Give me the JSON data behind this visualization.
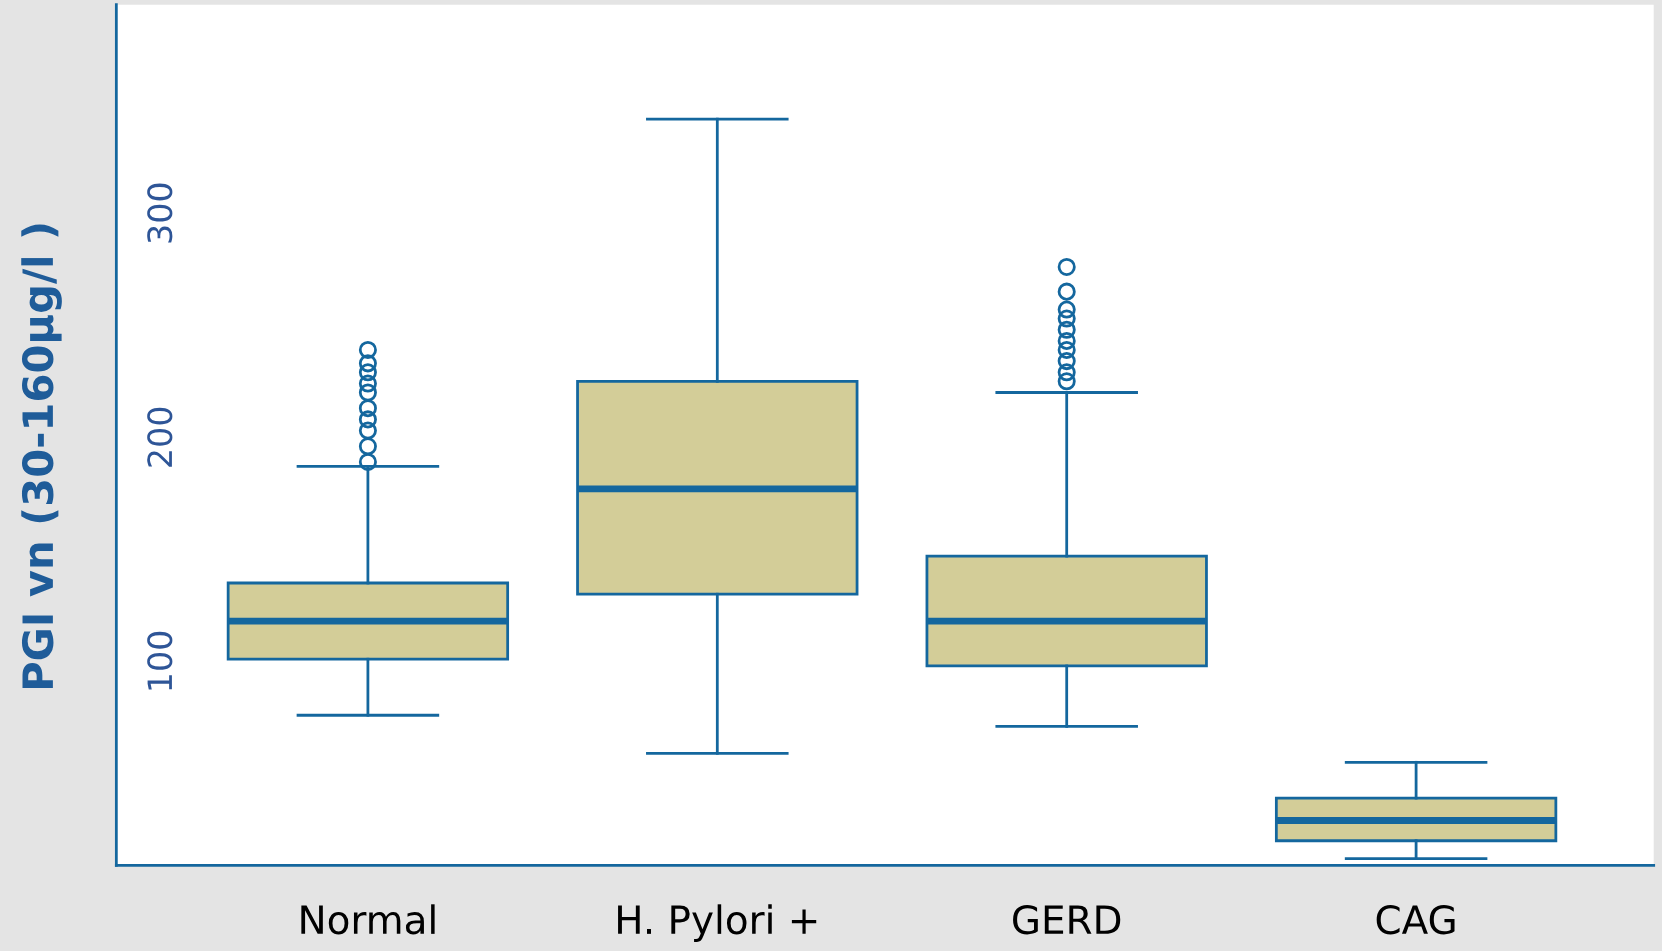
{
  "chart_data": {
    "type": "box",
    "ylabel": "PGI vn (30-160μg/l )",
    "categories": [
      "Normal",
      "H. Pylori +",
      "GERD",
      "CAG"
    ],
    "boxes": [
      {
        "low": 76,
        "q1": 101,
        "median": 118,
        "q3": 135,
        "high": 187,
        "outliers": [
          189,
          196,
          203,
          208,
          213,
          220,
          224,
          229,
          233,
          239
        ]
      },
      {
        "low": 59,
        "q1": 130,
        "median": 177,
        "q3": 225,
        "high": 342
      },
      {
        "low": 71,
        "q1": 98,
        "median": 118,
        "q3": 147,
        "high": 220,
        "outliers": [
          225,
          229,
          234,
          239,
          243,
          248,
          253,
          257,
          265,
          276
        ]
      },
      {
        "low": 12,
        "q1": 20,
        "median": 29,
        "q3": 39,
        "high": 55
      }
    ],
    "color": "#d3cd98",
    "ylim": [
      9,
      393
    ],
    "yticks": [
      100,
      200,
      300
    ],
    "grid": false
  }
}
